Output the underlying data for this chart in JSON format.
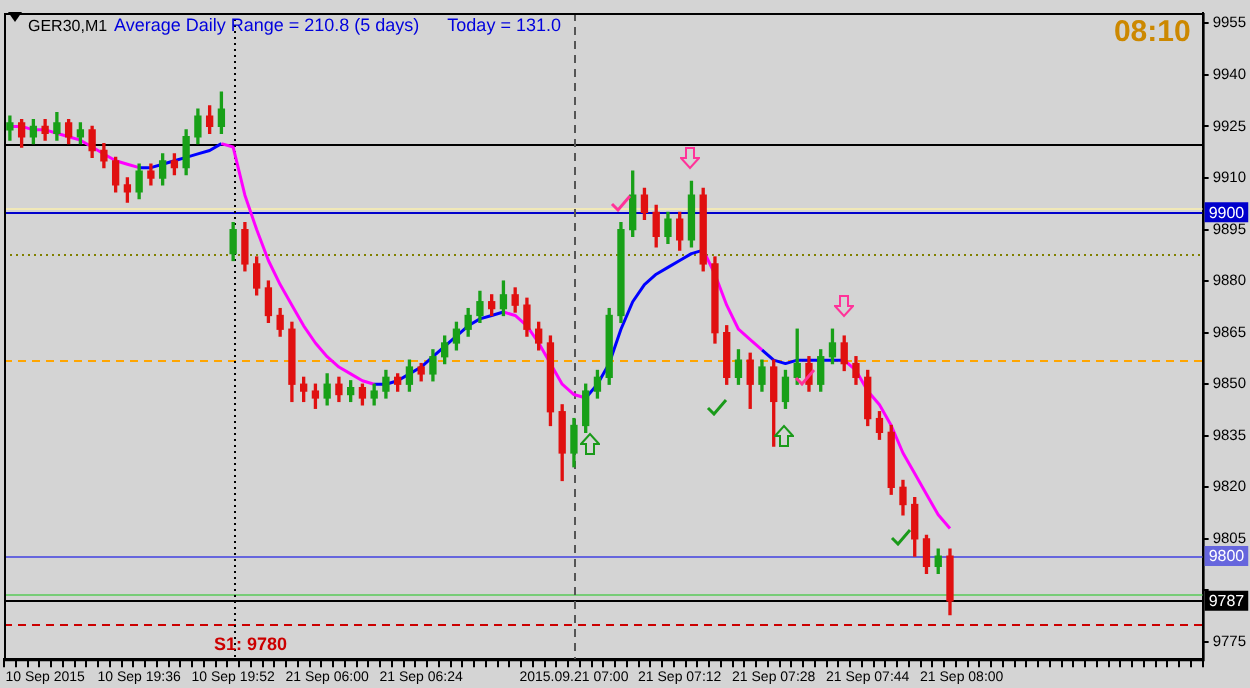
{
  "chart_data": {
    "type": "candlestick",
    "title": "GER30,M1",
    "annotations": [
      "Average Daily Range = 210.8 (5 days)",
      "Today = 131.0",
      "08:10"
    ],
    "categories": [
      null,
      null,
      null,
      "10 Sep 2015",
      null,
      null,
      null,
      null,
      null,
      null,
      null,
      "10 Sep 19:36",
      null,
      null,
      null,
      null,
      null,
      null,
      null,
      "10 Sep 19:52",
      null,
      null,
      null,
      null,
      null,
      null,
      null,
      "21 Sep 06:00",
      null,
      null,
      null,
      null,
      null,
      null,
      null,
      "21 Sep 06:24",
      null,
      null,
      null,
      null,
      null,
      null,
      null,
      null,
      null,
      null,
      null,
      null,
      "2015.09.21 07:00",
      null,
      null,
      null,
      null,
      null,
      null,
      null,
      null,
      "21 Sep 07:12",
      null,
      null,
      null,
      null,
      null,
      null,
      null,
      "21 Sep 07:28",
      null,
      null,
      null,
      null,
      null,
      null,
      null,
      "21 Sep 07:44",
      null,
      null,
      null,
      null,
      null,
      null,
      null,
      "21 Sep 08:00",
      null,
      null,
      null,
      null,
      null,
      null,
      null,
      null,
      null,
      null,
      null,
      null,
      null,
      null,
      null,
      null,
      null,
      null,
      null,
      null
    ],
    "ohlc": [
      [
        9924,
        9928,
        9921,
        9926
      ],
      [
        9926,
        9927,
        9919,
        9922
      ],
      [
        9922,
        9927,
        9920,
        9925
      ],
      [
        9925,
        9927,
        9921,
        9923
      ],
      [
        9923,
        9929,
        9921,
        9926
      ],
      [
        9926,
        9927,
        9920,
        9922
      ],
      [
        9922,
        9926,
        9920,
        9924
      ],
      [
        9924,
        9925,
        9916,
        9918
      ],
      [
        9918,
        9920,
        9913,
        9915
      ],
      [
        9915,
        9916,
        9906,
        9908
      ],
      [
        9908,
        9910,
        9903,
        9906
      ],
      [
        9906,
        9914,
        9904,
        9912
      ],
      [
        9912,
        9914,
        9908,
        9910
      ],
      [
        9910,
        9917,
        9908,
        9915
      ],
      [
        9915,
        9917,
        9911,
        9913
      ],
      [
        9913,
        9924,
        9911,
        9922
      ],
      [
        9922,
        9930,
        9920,
        9928
      ],
      [
        9928,
        9931,
        9923,
        9925
      ],
      [
        9925,
        9935,
        9923,
        9930
      ],
      [
        9888,
        9897,
        9886,
        9895
      ],
      [
        9895,
        9897,
        9883,
        9885
      ],
      [
        9885,
        9887,
        9876,
        9878
      ],
      [
        9878,
        9880,
        9868,
        9870
      ],
      [
        9870,
        9872,
        9864,
        9866
      ],
      [
        9866,
        9868,
        9845,
        9850
      ],
      [
        9850,
        9852,
        9845,
        9848
      ],
      [
        9848,
        9850,
        9843,
        9846
      ],
      [
        9846,
        9853,
        9844,
        9850
      ],
      [
        9850,
        9852,
        9845,
        9847
      ],
      [
        9847,
        9851,
        9845,
        9849
      ],
      [
        9849,
        9850,
        9844,
        9846
      ],
      [
        9846,
        9850,
        9844,
        9848
      ],
      [
        9848,
        9854,
        9846,
        9852
      ],
      [
        9852,
        9853,
        9848,
        9850
      ],
      [
        9850,
        9857,
        9848,
        9855
      ],
      [
        9855,
        9856,
        9851,
        9853
      ],
      [
        9853,
        9860,
        9851,
        9858
      ],
      [
        9858,
        9864,
        9856,
        9862
      ],
      [
        9862,
        9868,
        9860,
        9866
      ],
      [
        9866,
        9872,
        9864,
        9870
      ],
      [
        9870,
        9877,
        9868,
        9874
      ],
      [
        9874,
        9876,
        9870,
        9872
      ],
      [
        9872,
        9880,
        9870,
        9876
      ],
      [
        9876,
        9878,
        9871,
        9873
      ],
      [
        9873,
        9875,
        9864,
        9866
      ],
      [
        9866,
        9868,
        9860,
        9862
      ],
      [
        9862,
        9864,
        9838,
        9842
      ],
      [
        9842,
        9844,
        9822,
        9830
      ],
      [
        9830,
        9840,
        9826,
        9838
      ],
      [
        9838,
        9850,
        9836,
        9848
      ],
      [
        9848,
        9854,
        9846,
        9852
      ],
      [
        9852,
        9872,
        9850,
        9870
      ],
      [
        9870,
        9897,
        9868,
        9895
      ],
      [
        9895,
        9912,
        9893,
        9905
      ],
      [
        9905,
        9907,
        9898,
        9900
      ],
      [
        9900,
        9902,
        9890,
        9893
      ],
      [
        9893,
        9900,
        9891,
        9898
      ],
      [
        9898,
        9900,
        9889,
        9892
      ],
      [
        9892,
        9909,
        9890,
        9905
      ],
      [
        9905,
        9907,
        9883,
        9885
      ],
      [
        9885,
        9887,
        9862,
        9865
      ],
      [
        9865,
        9867,
        9850,
        9852
      ],
      [
        9852,
        9860,
        9850,
        9857
      ],
      [
        9857,
        9859,
        9843,
        9850
      ],
      [
        9850,
        9857,
        9848,
        9855
      ],
      [
        9855,
        9857,
        9832,
        9845
      ],
      [
        9845,
        9854,
        9843,
        9852
      ],
      [
        9852,
        9866,
        9850,
        9856
      ],
      [
        9856,
        9858,
        9848,
        9850
      ],
      [
        9850,
        9860,
        9848,
        9858
      ],
      [
        9858,
        9866,
        9856,
        9862
      ],
      [
        9862,
        9864,
        9854,
        9856
      ],
      [
        9856,
        9858,
        9850,
        9852
      ],
      [
        9852,
        9854,
        9838,
        9840
      ],
      [
        9840,
        9842,
        9834,
        9836
      ],
      [
        9836,
        9838,
        9818,
        9820
      ],
      [
        9820,
        9822,
        9812,
        9815
      ],
      [
        9815,
        9817,
        9800,
        9805
      ],
      [
        9805,
        9806,
        9795,
        9797
      ],
      [
        9797,
        9802,
        9795,
        9800
      ],
      [
        9800,
        9802,
        9783,
        9787
      ],
      null,
      null,
      null,
      null,
      null,
      null,
      null,
      null,
      null,
      null,
      null,
      null,
      null,
      null,
      null,
      null,
      null,
      null,
      null,
      null,
      null
    ],
    "series": [
      {
        "type": "line",
        "color": "#ff00ff",
        "values": [
          9925,
          9925,
          9924,
          9924,
          9923,
          9922,
          9921,
          9919,
          9917,
          9915,
          9914,
          9913,
          null,
          null,
          null,
          null,
          null,
          null,
          9920,
          9919,
          9905,
          9895,
          9886,
          9879,
          9873,
          9867,
          9862,
          9858,
          9855,
          9853,
          9851,
          9850,
          null,
          null,
          null,
          null,
          null,
          null,
          null,
          null,
          null,
          null,
          9871,
          9870,
          9867,
          9862,
          9856,
          9850,
          9847,
          9846,
          null,
          null,
          null,
          null,
          null,
          null,
          null,
          null,
          null,
          9889,
          9882,
          9873,
          9866,
          9863,
          9860,
          null,
          null,
          null,
          null,
          null,
          null,
          9857,
          9854,
          9848,
          9844,
          9838,
          9830,
          9824,
          9818,
          9812,
          9808,
          null,
          null,
          null,
          null,
          null,
          null,
          null,
          null,
          null,
          null,
          null,
          null,
          null,
          null,
          null,
          null,
          null,
          null,
          null,
          null,
          null
        ]
      },
      {
        "type": "line",
        "color": "#0000ff",
        "values": [
          null,
          null,
          null,
          null,
          null,
          null,
          null,
          null,
          null,
          null,
          null,
          9913,
          9913,
          9914,
          9915,
          9916,
          9917,
          9918,
          9920,
          null,
          null,
          null,
          null,
          null,
          null,
          null,
          null,
          null,
          null,
          null,
          null,
          9850,
          9850,
          9851,
          9853,
          9855,
          9858,
          9861,
          9864,
          9867,
          9869,
          9870,
          9871,
          null,
          null,
          null,
          null,
          null,
          null,
          9846,
          9850,
          9856,
          9866,
          9874,
          9879,
          9882,
          9884,
          9886,
          9888,
          9889,
          null,
          null,
          null,
          null,
          9860,
          9857,
          9856,
          9857,
          9857,
          9857,
          9857,
          9857,
          null,
          null,
          null,
          null,
          null,
          null,
          null,
          null,
          null,
          null,
          null,
          null,
          null,
          null,
          null,
          null,
          null,
          null,
          null,
          null,
          null,
          null,
          null,
          null,
          null,
          null,
          null,
          null,
          null,
          null
        ]
      }
    ],
    "ylim": [
      9770,
      9958
    ],
    "yticks": [
      9955,
      9940,
      9925,
      9910,
      9895,
      9880,
      9865,
      9850,
      9835,
      9820,
      9805,
      {
        "value": 9790,
        "label": null
      },
      9775
    ],
    "ref_lines": [
      {
        "axis": "y",
        "value": 9920,
        "color": "#000000"
      },
      {
        "axis": "y",
        "value": 9901,
        "color": "#f0e8b8"
      },
      {
        "axis": "y",
        "value": 9900,
        "color": "#0000cc",
        "label": "9900"
      },
      {
        "axis": "y",
        "value": 9888,
        "color": "#808000",
        "line_style": "dotted"
      },
      {
        "axis": "y",
        "value": 9857,
        "color": "#ffa500",
        "line_style": "dashed"
      },
      {
        "axis": "y",
        "value": 9800,
        "color": "#6666dd",
        "label": "9800"
      },
      {
        "axis": "y",
        "value": 9789,
        "color": "#77cc77"
      },
      {
        "axis": "y",
        "value": 9787,
        "color": "#000000",
        "label": "9787"
      },
      {
        "axis": "y",
        "value": 9780,
        "color": "#cc0000",
        "line_style": "dashed",
        "label": "S1: 9780"
      },
      {
        "axis": "x",
        "value": "10 Sep 19:52",
        "color": "#000000",
        "line_style": "dotted"
      },
      {
        "axis": "x",
        "value": "2015.09.21 07:00",
        "color": "#555555",
        "line_style": "dashed"
      }
    ],
    "legend": false
  }
}
